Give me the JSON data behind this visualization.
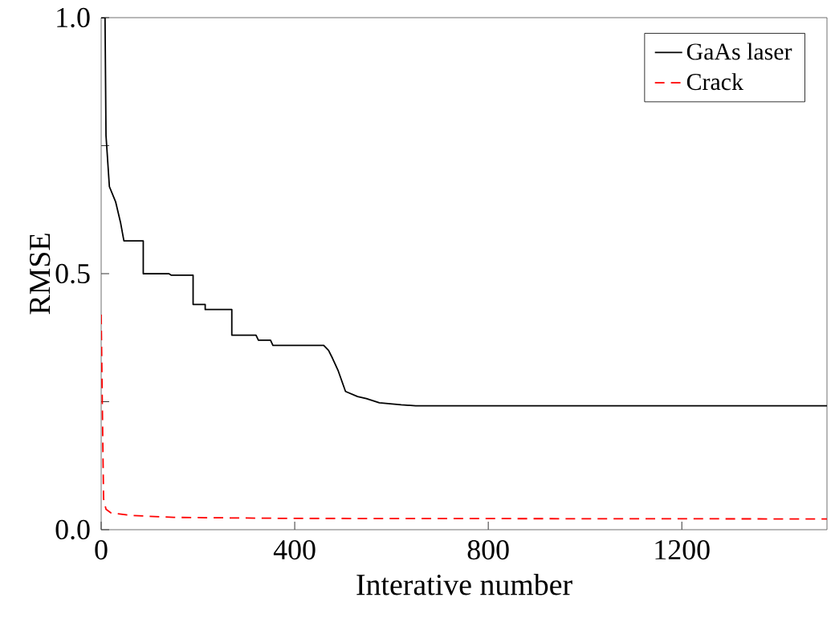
{
  "chart_data": {
    "type": "line",
    "xlabel": "Interative number",
    "ylabel": "RMSE",
    "xlim": [
      0,
      1500
    ],
    "ylim": [
      0,
      1.0
    ],
    "xticks": [
      0,
      400,
      800,
      1200
    ],
    "yticks": [
      {
        "value": 0.0,
        "label": "0.0"
      },
      {
        "value": 0.25,
        "label": null
      },
      {
        "value": 0.5,
        "label": "0.5"
      },
      {
        "value": 0.75,
        "label": null
      },
      {
        "value": 1.0,
        "label": "1.0"
      }
    ],
    "legend": "top right",
    "grid": false,
    "marker": "none",
    "series": [
      {
        "name": "GaAs laser",
        "color": "#000000",
        "line_style": "solid",
        "x": [
          0,
          8,
          10,
          17,
          30,
          40,
          47,
          87,
          87,
          140,
          145,
          190,
          190,
          215,
          215,
          270,
          270,
          320,
          325,
          350,
          355,
          460,
          470,
          478,
          490,
          505,
          530,
          548,
          575,
          620,
          650,
          1500
        ],
        "values": [
          1.0,
          1.0,
          0.77,
          0.67,
          0.64,
          0.6,
          0.564,
          0.564,
          0.5,
          0.5,
          0.497,
          0.497,
          0.44,
          0.44,
          0.43,
          0.43,
          0.38,
          0.38,
          0.37,
          0.37,
          0.36,
          0.36,
          0.35,
          0.335,
          0.31,
          0.27,
          0.26,
          0.256,
          0.248,
          0.244,
          0.242,
          0.242
        ]
      },
      {
        "name": "Crack",
        "color": "#ff0000",
        "line_style": "dashed",
        "x": [
          0,
          3,
          5,
          10,
          20,
          60,
          150,
          400,
          1500
        ],
        "values": [
          0.42,
          0.2,
          0.06,
          0.04,
          0.033,
          0.028,
          0.024,
          0.022,
          0.021
        ]
      }
    ]
  }
}
